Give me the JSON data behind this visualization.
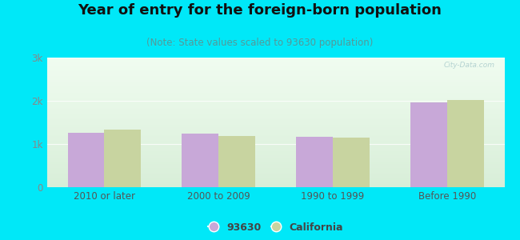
{
  "title": "Year of entry for the foreign-born population",
  "subtitle": "(Note: State values scaled to 93630 population)",
  "categories": [
    "2010 or later",
    "2000 to 2009",
    "1990 to 1999",
    "Before 1990"
  ],
  "values_93630": [
    1260,
    1250,
    1160,
    1970
  ],
  "values_california": [
    1340,
    1180,
    1140,
    2010
  ],
  "bar_color_93630": "#c8a8d8",
  "bar_color_california": "#c8d4a0",
  "background_outer": "#00e8f8",
  "ylim": [
    0,
    3000
  ],
  "yticks": [
    0,
    1000,
    2000,
    3000
  ],
  "ytick_labels": [
    "0",
    "1k",
    "2k",
    "3k"
  ],
  "legend_label_1": "93630",
  "legend_label_2": "California",
  "title_fontsize": 13,
  "subtitle_fontsize": 8.5,
  "bar_width": 0.32
}
